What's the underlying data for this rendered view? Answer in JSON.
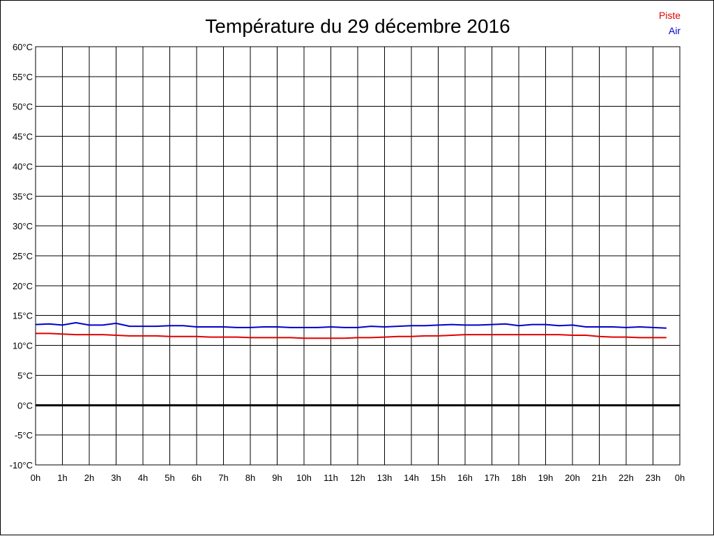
{
  "chart_data": {
    "type": "line",
    "title": "Température du 29 décembre 2016",
    "xlabel": "",
    "ylabel": "",
    "x_ticks": [
      "0h",
      "1h",
      "2h",
      "3h",
      "4h",
      "5h",
      "6h",
      "7h",
      "8h",
      "9h",
      "10h",
      "11h",
      "12h",
      "13h",
      "14h",
      "15h",
      "16h",
      "17h",
      "18h",
      "19h",
      "20h",
      "21h",
      "22h",
      "23h",
      "0h"
    ],
    "y_ticks": [
      "60°C",
      "55°C",
      "50°C",
      "45°C",
      "40°C",
      "35°C",
      "30°C",
      "25°C",
      "20°C",
      "15°C",
      "10°C",
      "5°C",
      "0°C",
      "-5°C",
      "-10°C"
    ],
    "xlim": [
      0,
      24
    ],
    "ylim": [
      -10,
      60
    ],
    "grid": true,
    "legend_position": "top-right",
    "x": [
      0,
      0.5,
      1,
      1.5,
      2,
      2.5,
      3,
      3.5,
      4,
      4.5,
      5,
      5.5,
      6,
      6.5,
      7,
      7.5,
      8,
      8.5,
      9,
      9.5,
      10,
      10.5,
      11,
      11.5,
      12,
      12.5,
      13,
      13.5,
      14,
      14.5,
      15,
      15.5,
      16,
      16.5,
      17,
      17.5,
      18,
      18.5,
      19,
      19.5,
      20,
      20.5,
      21,
      21.5,
      22,
      22.5,
      23,
      23.5
    ],
    "series": [
      {
        "name": "Piste",
        "color": "#e00000",
        "values": [
          12.0,
          12.0,
          11.9,
          11.8,
          11.8,
          11.8,
          11.7,
          11.6,
          11.6,
          11.6,
          11.5,
          11.5,
          11.5,
          11.4,
          11.4,
          11.4,
          11.3,
          11.3,
          11.3,
          11.3,
          11.2,
          11.2,
          11.2,
          11.2,
          11.3,
          11.3,
          11.4,
          11.5,
          11.5,
          11.6,
          11.6,
          11.7,
          11.8,
          11.8,
          11.8,
          11.8,
          11.8,
          11.8,
          11.8,
          11.8,
          11.7,
          11.7,
          11.5,
          11.4,
          11.4,
          11.3,
          11.3,
          11.3
        ]
      },
      {
        "name": "Air",
        "color": "#0000cc",
        "values": [
          13.5,
          13.6,
          13.4,
          13.8,
          13.4,
          13.4,
          13.7,
          13.2,
          13.2,
          13.2,
          13.3,
          13.3,
          13.1,
          13.1,
          13.1,
          13.0,
          13.0,
          13.1,
          13.1,
          13.0,
          13.0,
          13.0,
          13.1,
          13.0,
          13.0,
          13.2,
          13.1,
          13.2,
          13.3,
          13.3,
          13.4,
          13.5,
          13.4,
          13.4,
          13.5,
          13.6,
          13.3,
          13.5,
          13.5,
          13.3,
          13.4,
          13.1,
          13.1,
          13.1,
          13.0,
          13.1,
          13.0,
          12.9
        ]
      }
    ],
    "baseline": {
      "value": 0,
      "color": "#000000"
    }
  }
}
